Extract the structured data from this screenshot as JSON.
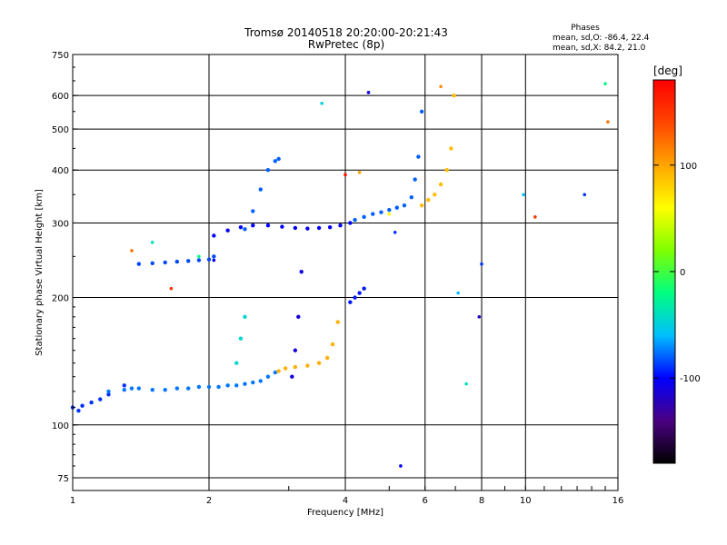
{
  "chart_data": {
    "type": "scatter",
    "title": "Tromsø 20140518 20:20:00-20:21:43",
    "subtitle": "RwPretec (8p)",
    "xlabel": "Frequency [MHz]",
    "ylabel": "Stationary phase Virtual Height [km]",
    "x_scale": "log",
    "y_scale": "log",
    "xlim": [
      1,
      16
    ],
    "ylim": [
      70,
      750
    ],
    "x_ticks": [
      1,
      2,
      4,
      6,
      8,
      10,
      16
    ],
    "y_ticks": [
      75,
      100,
      200,
      300,
      400,
      500,
      600,
      750
    ],
    "grid": true,
    "stats": {
      "heading": "Phases",
      "line1": "mean, sd,O: -86.4, 22.4",
      "line2": "mean, sd,X:  84.2, 21.0"
    },
    "colorbar": {
      "label": "[deg]",
      "range": [
        -180,
        180
      ],
      "ticks": [
        100,
        0,
        -100
      ],
      "colors": [
        "#000000",
        "#4b0082",
        "#0000ff",
        "#00bfff",
        "#00ff80",
        "#80ff00",
        "#ffff00",
        "#ffa500",
        "#ff4500",
        "#ff0000"
      ]
    },
    "series": [
      {
        "x": [
          1.0,
          1.03,
          1.05,
          1.1,
          1.15,
          1.2,
          1.3
        ],
        "y": [
          110,
          108,
          111,
          113,
          115,
          118,
          124
        ],
        "phase": -90
      },
      {
        "x": [
          1.2,
          1.3,
          1.35,
          1.4,
          1.5,
          1.6,
          1.7,
          1.8,
          1.9,
          2.0,
          2.1,
          2.2,
          2.3,
          2.4,
          2.5,
          2.6,
          2.7,
          2.8
        ],
        "y": [
          120,
          121,
          122,
          122,
          121,
          121,
          122,
          122,
          123,
          123,
          123,
          124,
          124,
          125,
          126,
          127,
          130,
          133
        ],
        "phase": -75
      },
      {
        "x": [
          2.85,
          2.95,
          3.1,
          3.3,
          3.5,
          3.65,
          3.75,
          3.85
        ],
        "y": [
          134,
          136,
          137,
          138,
          140,
          144,
          155,
          175
        ],
        "phase": 95
      },
      {
        "x": [
          1.4,
          1.5,
          1.6,
          1.7,
          1.8,
          1.9,
          2.0,
          2.05
        ],
        "y": [
          240,
          241,
          242,
          243,
          244,
          245,
          246,
          250
        ],
        "phase": -85
      },
      {
        "x": [
          2.05,
          2.2,
          2.35,
          2.5,
          2.7,
          2.9,
          3.1,
          3.3,
          3.5,
          3.7,
          3.9,
          4.1
        ],
        "y": [
          280,
          288,
          293,
          296,
          296,
          294,
          292,
          291,
          292,
          293,
          296,
          300
        ],
        "phase": -100
      },
      {
        "x": [
          4.2,
          4.4,
          4.6,
          4.8,
          5.0,
          5.2,
          5.4,
          5.6,
          5.7,
          5.8,
          5.9
        ],
        "y": [
          305,
          310,
          315,
          318,
          322,
          326,
          330,
          345,
          380,
          430,
          550
        ],
        "phase": -80
      },
      {
        "x": [
          5.9,
          6.1,
          6.3,
          6.5,
          6.7,
          6.85,
          6.95
        ],
        "y": [
          330,
          340,
          350,
          370,
          400,
          450,
          600
        ],
        "phase": 90
      },
      {
        "x": [
          3.05,
          3.1,
          3.15,
          3.2
        ],
        "y": [
          130,
          150,
          180,
          230
        ],
        "phase": -110
      },
      {
        "x": [
          2.4,
          2.5,
          2.6,
          2.7,
          2.8,
          2.85
        ],
        "y": [
          290,
          320,
          360,
          400,
          420,
          425
        ],
        "phase": -80
      },
      {
        "x": [
          4.1,
          4.2,
          4.3,
          4.4
        ],
        "y": [
          195,
          200,
          205,
          210
        ],
        "phase": -95
      },
      {
        "x": [
          2.3,
          2.35,
          2.4
        ],
        "y": [
          140,
          160,
          180
        ],
        "phase": -45
      }
    ],
    "isolated_points": {
      "x": [
        1.35,
        1.5,
        1.65,
        1.9,
        2.05,
        3.55,
        4.0,
        4.3,
        4.5,
        5.0,
        5.15,
        5.3,
        6.5,
        7.1,
        7.4,
        7.9,
        8.0,
        9.9,
        10.5,
        13.5,
        15.0,
        15.2
      ],
      "y": [
        258,
        270,
        210,
        250,
        245,
        575,
        390,
        395,
        610,
        315,
        285,
        80,
        630,
        205,
        125,
        180,
        240,
        350,
        310,
        350,
        640,
        520
      ],
      "phase": [
        120,
        -40,
        150,
        -20,
        -100,
        -50,
        170,
        100,
        -110,
        60,
        -90,
        -100,
        110,
        -60,
        -40,
        -120,
        -90,
        -60,
        150,
        -90,
        -20,
        120
      ]
    }
  }
}
